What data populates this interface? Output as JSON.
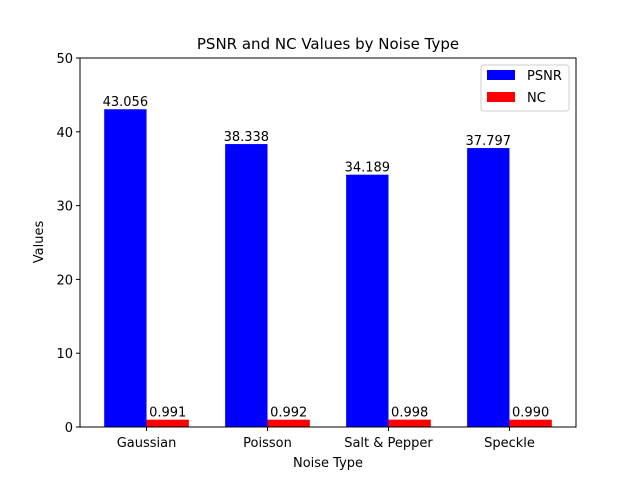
{
  "chart_data": {
    "type": "bar",
    "title": "PSNR and NC Values by Noise Type",
    "xlabel": "Noise Type",
    "ylabel": "Values",
    "categories": [
      "Gaussian",
      "Poisson",
      "Salt & Pepper",
      "Speckle"
    ],
    "series": [
      {
        "name": "PSNR",
        "color": "#0000ff",
        "values": [
          43.056,
          38.338,
          34.189,
          37.797
        ],
        "labels": [
          "43.056",
          "38.338",
          "34.189",
          "37.797"
        ]
      },
      {
        "name": "NC",
        "color": "#ff0000",
        "values": [
          0.991,
          0.992,
          0.998,
          0.99
        ],
        "labels": [
          "0.991",
          "0.992",
          "0.998",
          "0.990"
        ]
      }
    ],
    "ylim": [
      0,
      50
    ],
    "yticks": [
      0,
      10,
      20,
      30,
      40,
      50
    ],
    "grid": false,
    "legend_position": "top-right"
  }
}
